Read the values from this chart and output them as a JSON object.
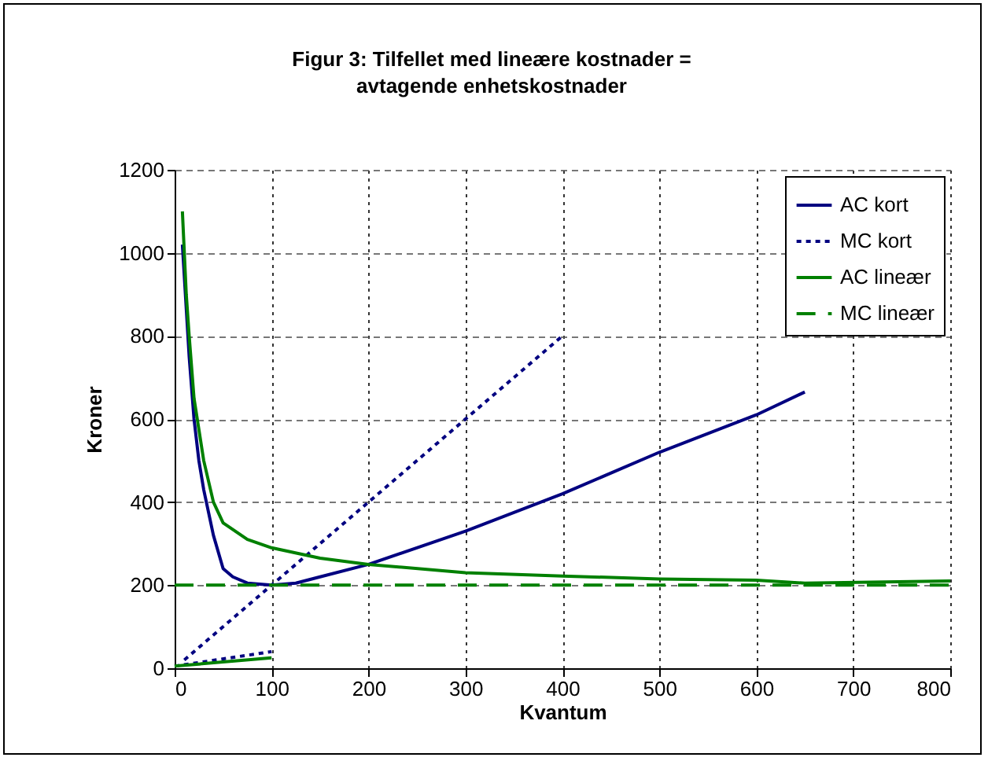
{
  "chart_data": {
    "type": "line",
    "title": "Figur 3: Tilfellet med lineære kostnader = avtagende enhetskostnader",
    "xlabel": "Kvantum",
    "ylabel": "Kroner",
    "xlim": [
      0,
      800
    ],
    "ylim": [
      0,
      1200
    ],
    "xticks": [
      0,
      100,
      200,
      300,
      400,
      500,
      600,
      700,
      800
    ],
    "yticks": [
      0,
      200,
      400,
      600,
      800,
      1000,
      1200
    ],
    "grid": true,
    "legend": "top right",
    "marker": "none",
    "series": [
      {
        "name": "AC kort",
        "color": "#000080",
        "line_style": "solid",
        "x": [
          8,
          15,
          20,
          25,
          30,
          40,
          50,
          60,
          75,
          100,
          125,
          150,
          200,
          300,
          400,
          500,
          600,
          650
        ],
        "values": [
          1020,
          750,
          600,
          500,
          430,
          320,
          240,
          220,
          205,
          200,
          205,
          220,
          250,
          330,
          420,
          520,
          610,
          665
        ]
      },
      {
        "name": "MC kort",
        "color": "#000080",
        "line_style": "dotted",
        "x": [
          10,
          400
        ],
        "values": [
          20,
          800
        ]
      },
      {
        "name": "AC lineær",
        "color": "#008000",
        "line_style": "solid",
        "x": [
          8,
          12,
          15,
          20,
          30,
          40,
          50,
          75,
          100,
          150,
          200,
          300,
          400,
          500,
          600,
          650,
          800
        ],
        "values": [
          1100,
          900,
          800,
          650,
          500,
          400,
          350,
          310,
          290,
          265,
          250,
          230,
          222,
          215,
          212,
          205,
          210
        ]
      },
      {
        "name": "MC lineær",
        "color": "#008000",
        "line_style": "dashed",
        "x": [
          0,
          800
        ],
        "values": [
          200,
          200
        ]
      },
      {
        "color": "#000080",
        "line_style": "dotted",
        "x": [
          0,
          100
        ],
        "values": [
          5,
          40
        ]
      },
      {
        "color": "#008000",
        "line_style": "solid",
        "x": [
          0,
          100
        ],
        "values": [
          5,
          25
        ]
      }
    ]
  }
}
